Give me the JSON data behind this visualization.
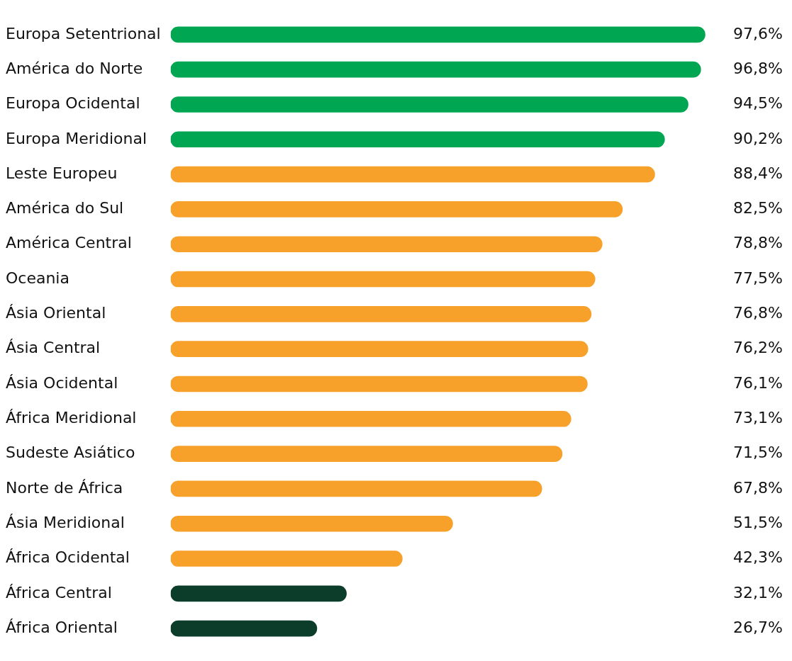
{
  "chart_data": {
    "type": "bar",
    "orientation": "horizontal",
    "categories": [
      "Europa Setentrional",
      "América do Norte",
      "Europa Ocidental",
      "Europa Meridional",
      "Leste Europeu",
      "América do Sul",
      "América Central",
      "Oceania",
      "Ásia Oriental",
      "Ásia Central",
      "Ásia Ocidental",
      "África Meridional",
      "Sudeste Asiático",
      "Norte de África",
      "Ásia Meridional",
      "África Ocidental",
      "África Central",
      "África Oriental"
    ],
    "values": [
      97.6,
      96.8,
      94.5,
      90.2,
      88.4,
      82.5,
      78.8,
      77.5,
      76.8,
      76.2,
      76.1,
      73.1,
      71.5,
      67.8,
      51.5,
      42.3,
      32.1,
      26.7
    ],
    "value_labels": [
      "97,6%",
      "96,8%",
      "94,5%",
      "90,2%",
      "88,4%",
      "82,5%",
      "78,8%",
      "77,5%",
      "76,8%",
      "76,2%",
      "76,1%",
      "73,1%",
      "71,5%",
      "67,8%",
      "51,5%",
      "42,3%",
      "32,1%",
      "26,7%"
    ],
    "colors": [
      "#00a651",
      "#00a651",
      "#00a651",
      "#00a651",
      "#f7a12b",
      "#f7a12b",
      "#f7a12b",
      "#f7a12b",
      "#f7a12b",
      "#f7a12b",
      "#f7a12b",
      "#f7a12b",
      "#f7a12b",
      "#f7a12b",
      "#f7a12b",
      "#f7a12b",
      "#0b3d2a",
      "#0b3d2a"
    ],
    "tick_labels": "y"
  }
}
